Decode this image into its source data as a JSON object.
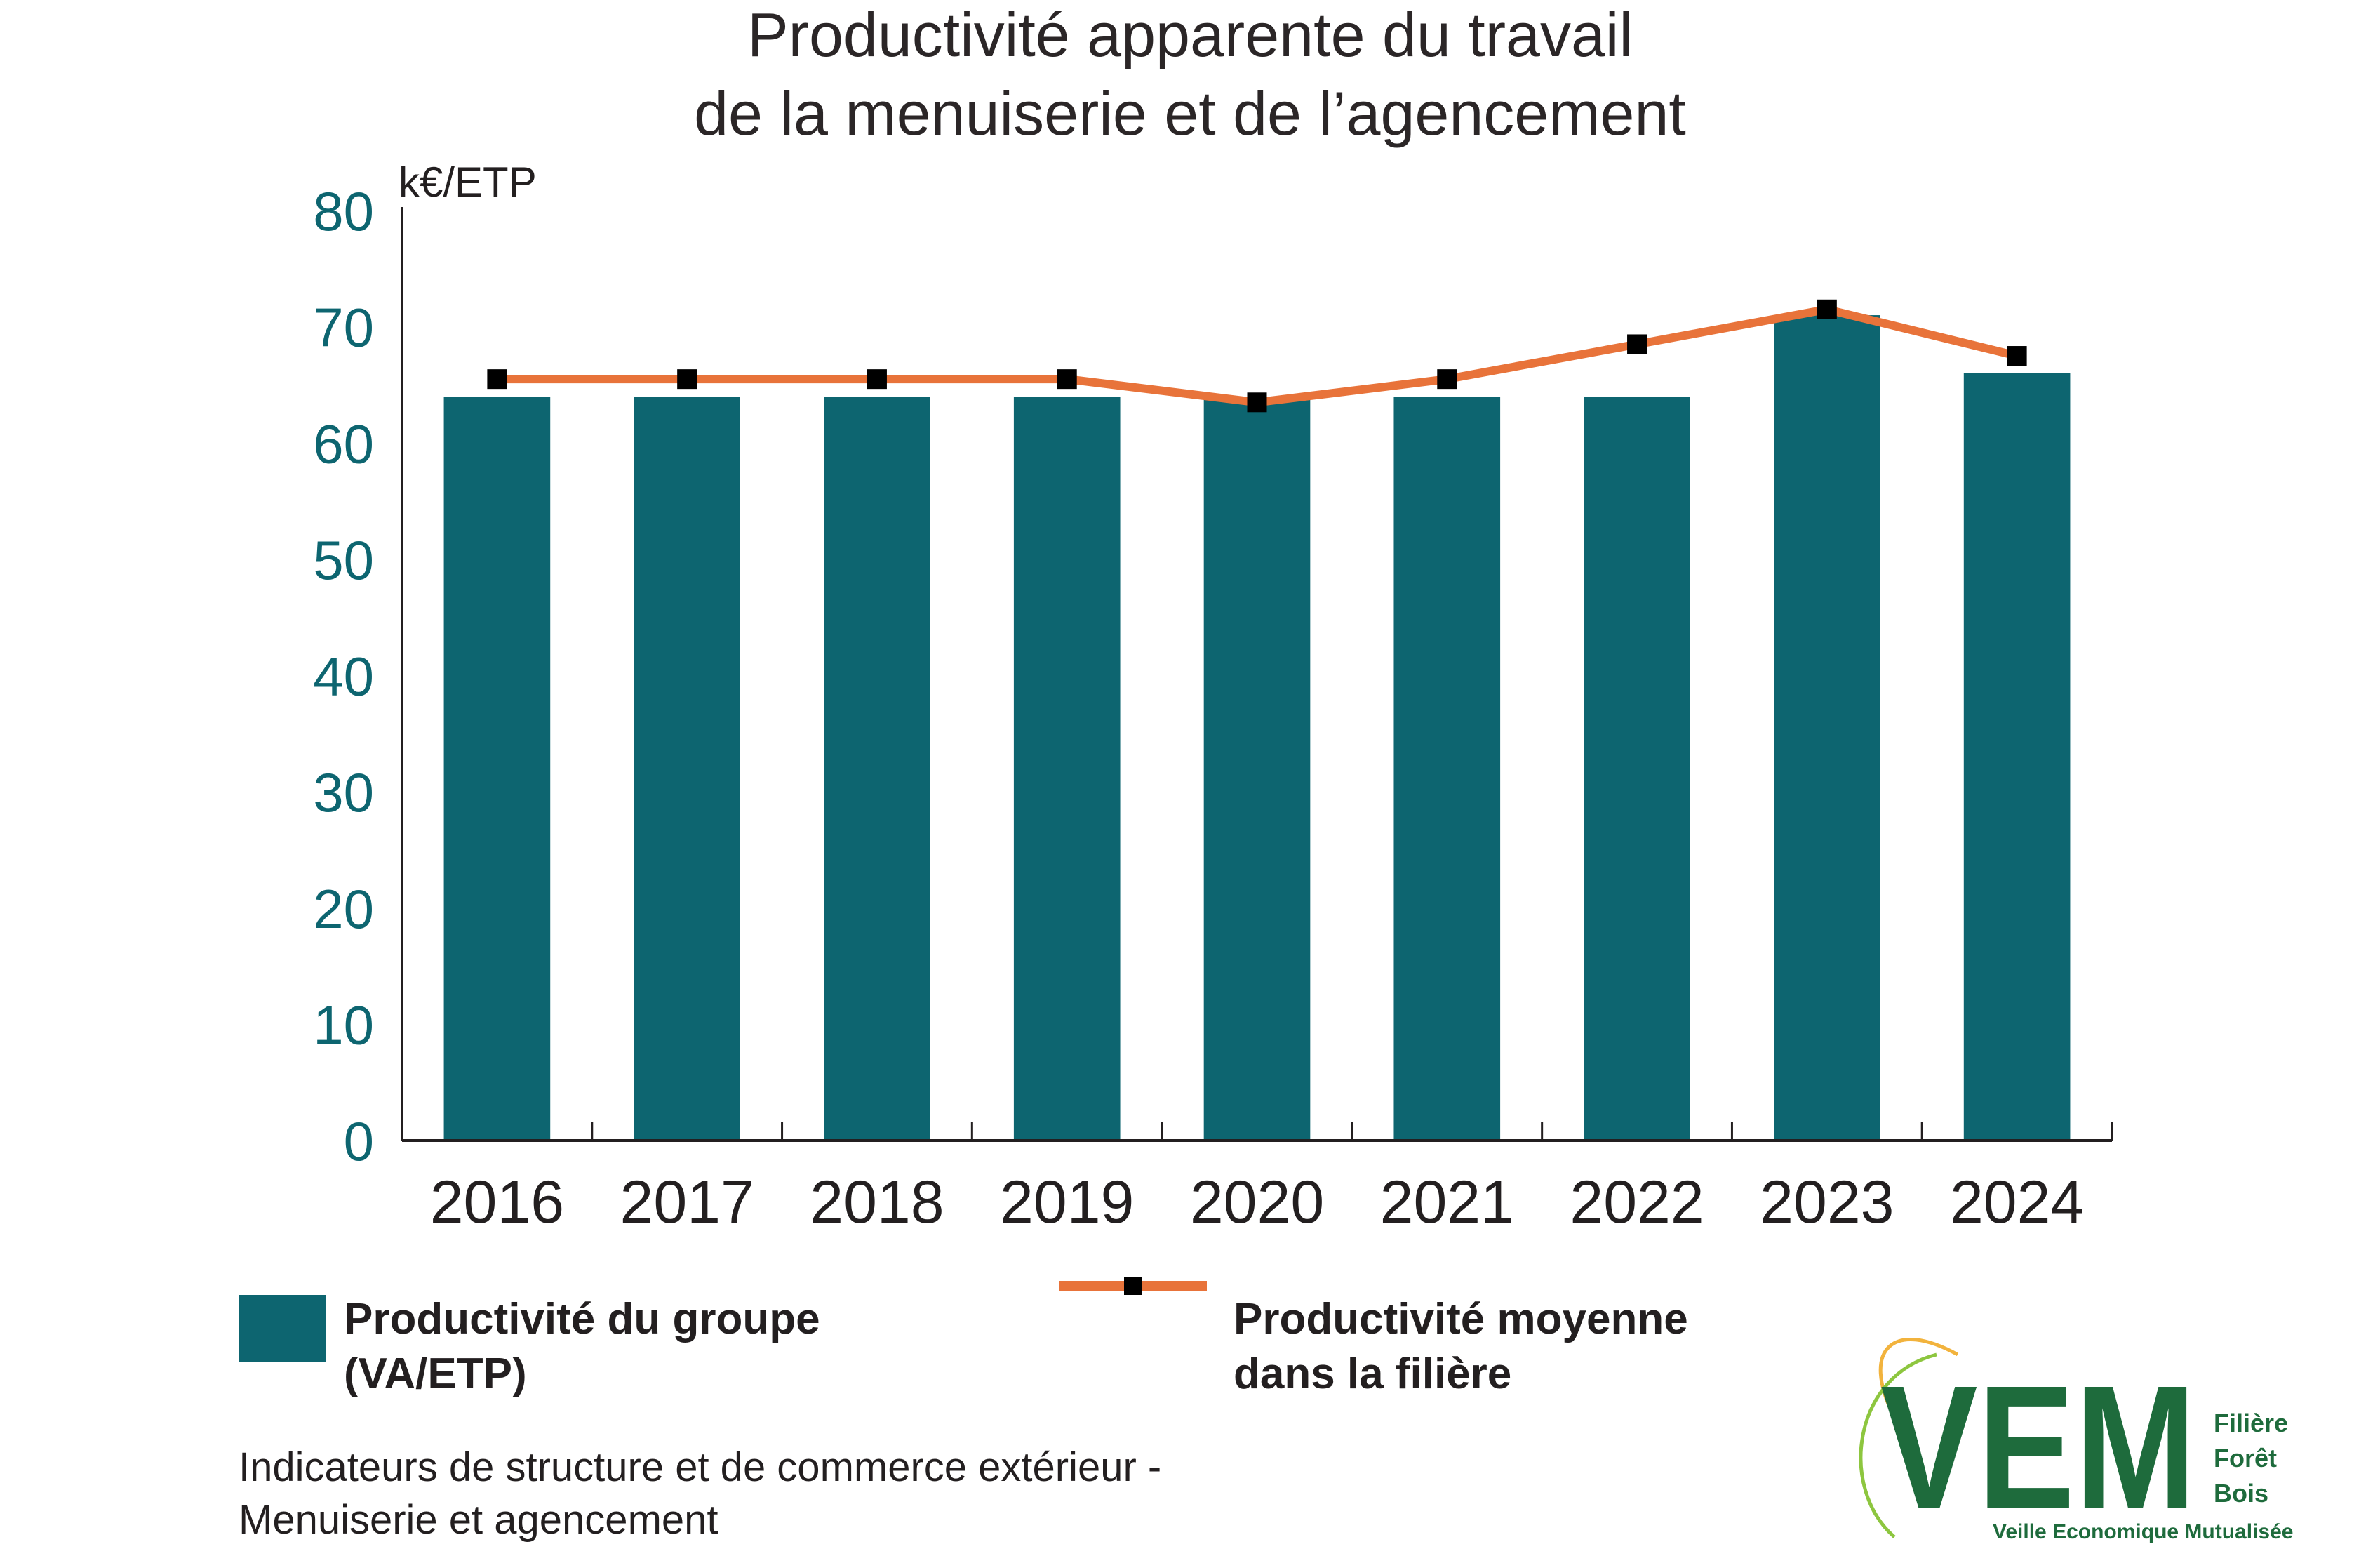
{
  "chart_data": {
    "type": "bar",
    "title": [
      "Productivité apparente du travail",
      "de la menuiserie et de l’agencement"
    ],
    "ylabel": "k€/ETP",
    "ylim": [
      0,
      80
    ],
    "yticks": [
      "0",
      "10",
      "20",
      "30",
      "40",
      "50",
      "60",
      "70",
      "80"
    ],
    "categories": [
      "2016",
      "2017",
      "2018",
      "2019",
      "2020",
      "2021",
      "2022",
      "2023",
      "2024"
    ],
    "series": [
      {
        "name": "Productivité du groupe (VA/ETP)",
        "legend_lines": [
          "Productivité du groupe",
          "(VA/ETP)"
        ],
        "type": "bar",
        "color": "#0d6570",
        "values": [
          64,
          64,
          64,
          64,
          64,
          64,
          64,
          71,
          66
        ]
      },
      {
        "name": "Productivité moyenne dans la filière",
        "legend_lines": [
          "Productivité moyenne",
          "dans la filière"
        ],
        "type": "line",
        "color": "#e8733a",
        "marker_color": "#000000",
        "values": [
          65.5,
          65.5,
          65.5,
          65.5,
          63.5,
          65.5,
          68.5,
          71.5,
          67.5
        ]
      }
    ],
    "grid": false,
    "legend_position": "bottom"
  },
  "source": [
    "Indicateurs de structure et de commerce extérieur -",
    "Menuiserie et agencement"
  ],
  "logo": {
    "mark": "VEM",
    "words": [
      "Filière",
      "Forêt",
      "Bois"
    ],
    "tagline": "Veille Economique Mutualisée"
  }
}
